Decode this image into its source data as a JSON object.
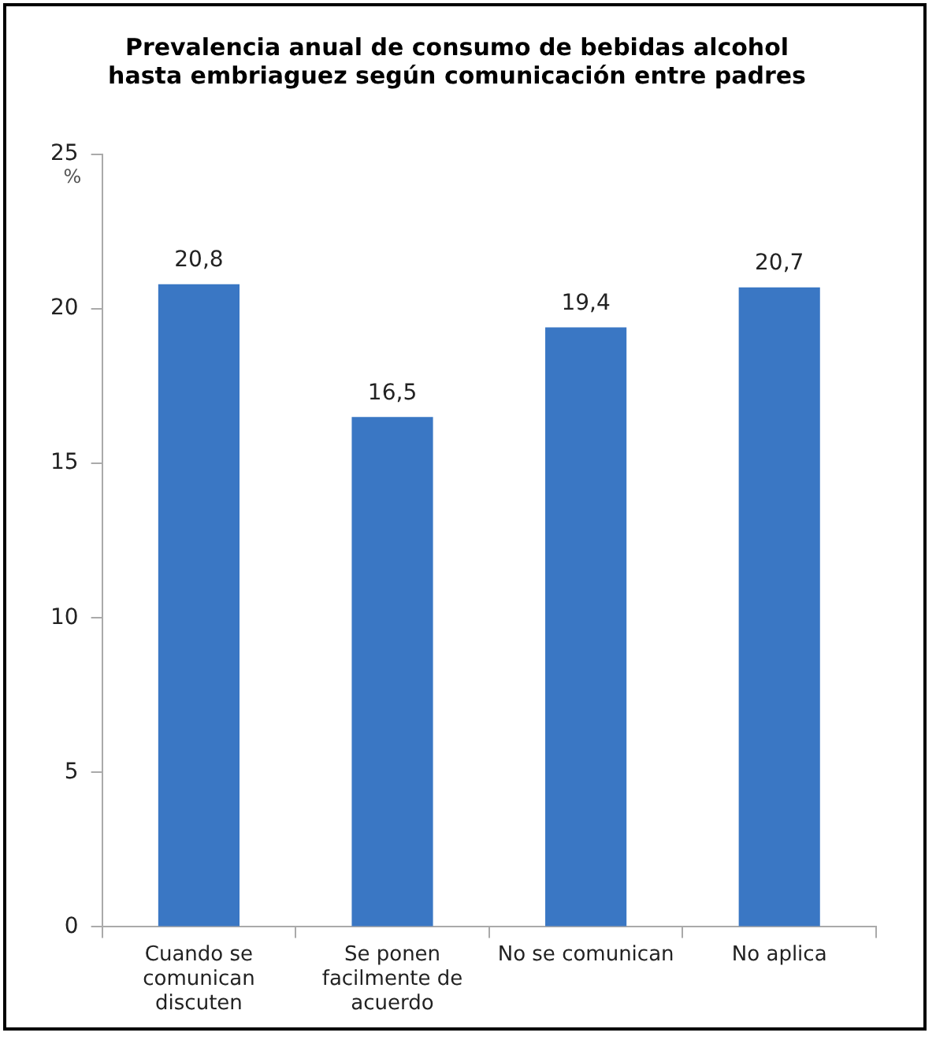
{
  "chart_data": {
    "type": "bar",
    "title": "Prevalencia anual de consumo de bebidas alcohol hasta embriaguez según comunicación entre padres",
    "ylabel": "%",
    "categories": [
      "Cuando se comunican discuten",
      "Se ponen facilmente de acuerdo",
      "No se comunican",
      "No aplica"
    ],
    "values": [
      20.8,
      16.5,
      19.4,
      20.7
    ],
    "value_labels": [
      "20,8",
      "16,5",
      "19,4",
      "20,7"
    ],
    "color": "#3a77c4",
    "ylim": [
      0,
      25
    ],
    "yticks": [
      0,
      5,
      10,
      15,
      20,
      25
    ],
    "grid": false,
    "legend": false
  }
}
